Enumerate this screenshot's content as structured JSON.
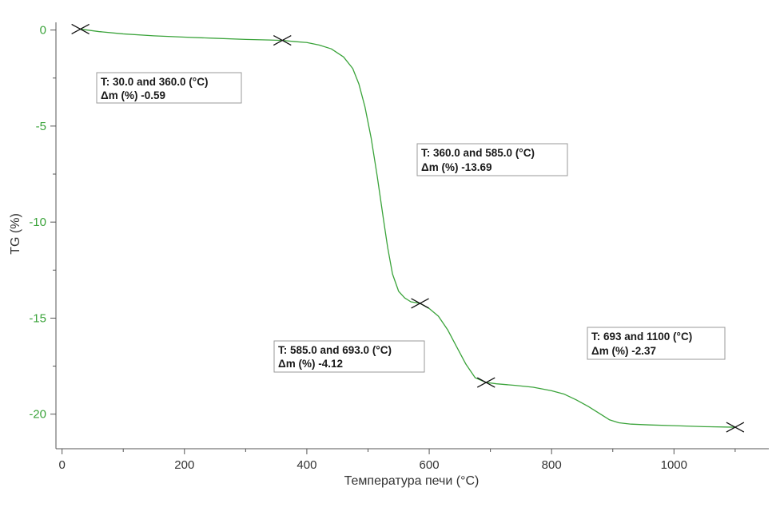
{
  "chart_data": {
    "type": "line",
    "xlabel": "Температура печи (°C)",
    "ylabel": "TG (%)",
    "xlim": [
      -10,
      1155
    ],
    "ylim": [
      -21.8,
      0.4
    ],
    "x_ticks": [
      0,
      200,
      400,
      600,
      800,
      1000
    ],
    "y_ticks": [
      0,
      -5,
      -10,
      -15,
      -20
    ],
    "grid": false,
    "colors": {
      "curve": "#3aa33a",
      "ytick_labels": "#3aa33a",
      "axis": "#555555",
      "markers": "#111111"
    },
    "series": [
      {
        "points": [
          [
            30,
            0.05
          ],
          [
            60,
            -0.08
          ],
          [
            100,
            -0.2
          ],
          [
            150,
            -0.3
          ],
          [
            200,
            -0.37
          ],
          [
            250,
            -0.43
          ],
          [
            300,
            -0.49
          ],
          [
            340,
            -0.52
          ],
          [
            360,
            -0.54
          ],
          [
            380,
            -0.6
          ],
          [
            400,
            -0.65
          ],
          [
            420,
            -0.78
          ],
          [
            440,
            -0.98
          ],
          [
            460,
            -1.4
          ],
          [
            475,
            -2.0
          ],
          [
            485,
            -2.8
          ],
          [
            495,
            -4.0
          ],
          [
            505,
            -5.6
          ],
          [
            515,
            -7.6
          ],
          [
            525,
            -9.8
          ],
          [
            532,
            -11.3
          ],
          [
            540,
            -12.7
          ],
          [
            550,
            -13.6
          ],
          [
            560,
            -13.95
          ],
          [
            570,
            -14.15
          ],
          [
            585,
            -14.23
          ],
          [
            600,
            -14.5
          ],
          [
            615,
            -14.9
          ],
          [
            630,
            -15.6
          ],
          [
            645,
            -16.5
          ],
          [
            660,
            -17.4
          ],
          [
            675,
            -18.1
          ],
          [
            693,
            -18.35
          ],
          [
            710,
            -18.42
          ],
          [
            740,
            -18.5
          ],
          [
            770,
            -18.6
          ],
          [
            800,
            -18.78
          ],
          [
            820,
            -18.95
          ],
          [
            840,
            -19.25
          ],
          [
            860,
            -19.6
          ],
          [
            880,
            -20.0
          ],
          [
            895,
            -20.3
          ],
          [
            910,
            -20.45
          ],
          [
            930,
            -20.52
          ],
          [
            960,
            -20.56
          ],
          [
            1000,
            -20.6
          ],
          [
            1050,
            -20.65
          ],
          [
            1100,
            -20.68
          ]
        ]
      }
    ],
    "markers": [
      {
        "x": 30,
        "y": 0.05
      },
      {
        "x": 360,
        "y": -0.54
      },
      {
        "x": 585,
        "y": -14.23
      },
      {
        "x": 693,
        "y": -18.35
      },
      {
        "x": 1100,
        "y": -20.68
      }
    ],
    "annotations": [
      {
        "line1": "T: 30.0 and 360.0 (°C)",
        "line2": "Δm (%) -0.59"
      },
      {
        "line1": "T: 360.0 and 585.0 (°C)",
        "line2": "Δm (%) -13.69"
      },
      {
        "line1": "T: 585.0 and 693.0 (°C)",
        "line2": "Δm (%) -4.12"
      },
      {
        "line1": "T: 693 and 1100 (°C)",
        "line2": "Δm (%) -2.37"
      }
    ]
  }
}
